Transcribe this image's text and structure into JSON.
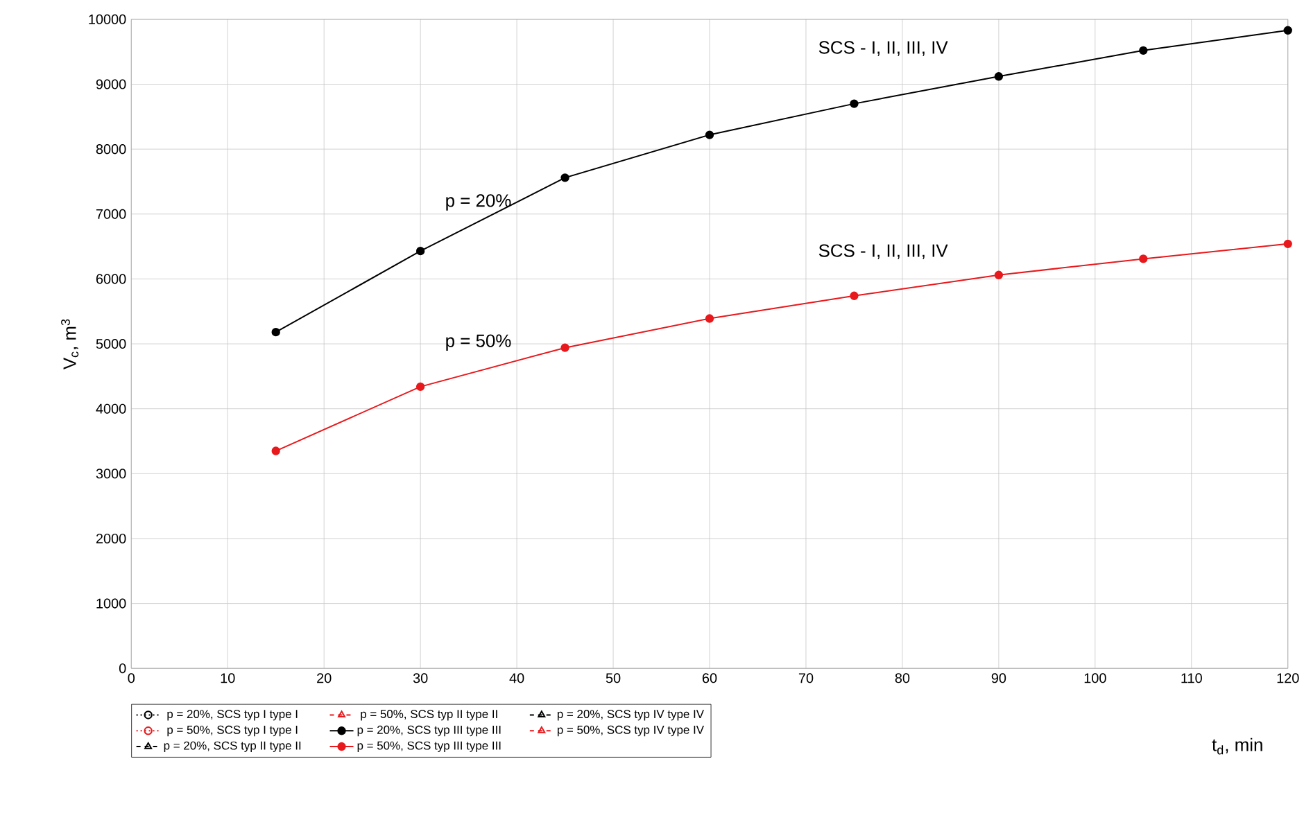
{
  "chart_data": {
    "type": "line",
    "xlabel": "t$_{d}$, min",
    "ylabel": "V$_{c}$, m$^{3}$",
    "x": [
      15,
      30,
      45,
      60,
      75,
      90,
      105,
      120
    ],
    "series": [
      {
        "name": "p = 20%, SCS typ I  type I",
        "color": "#000000",
        "marker": "circle",
        "line_style": "dotted",
        "values": [
          null,
          null,
          null,
          null,
          null,
          null,
          null,
          null
        ]
      },
      {
        "name": "p = 50%, SCS typ II  type II",
        "color": "#e8191c",
        "marker": "triangle",
        "line_style": "dashed",
        "values": [
          null,
          null,
          null,
          null,
          null,
          null,
          null,
          null
        ]
      },
      {
        "name": "p = 20%, SCS typ IV  type IV",
        "color": "#000000",
        "marker": "triangle",
        "line_style": "dashed",
        "values": [
          null,
          null,
          null,
          null,
          null,
          null,
          null,
          null
        ]
      },
      {
        "name": "p = 50%, SCS typ I  type I",
        "color": "#e8191c",
        "marker": "circle",
        "line_style": "dotted",
        "values": [
          null,
          null,
          null,
          null,
          null,
          null,
          null,
          null
        ]
      },
      {
        "name": "p = 20%, SCS typ III  type III",
        "color": "#000000",
        "marker": "circle",
        "line_style": "solid",
        "values": [
          5180,
          6430,
          7560,
          8220,
          8700,
          9120,
          9520,
          9830
        ]
      },
      {
        "name": "p = 50%, SCS typ IV  type IV",
        "color": "#e8191c",
        "marker": "triangle",
        "line_style": "dashed",
        "values": [
          null,
          null,
          null,
          null,
          null,
          null,
          null,
          null
        ]
      },
      {
        "name": "p = 20%, SCS typ II  type II",
        "color": "#000000",
        "marker": "triangle",
        "line_style": "dashed",
        "values": [
          null,
          null,
          null,
          null,
          null,
          null,
          null,
          null
        ]
      },
      {
        "name": "p = 50%, SCS typ III  type III",
        "color": "#e8191c",
        "marker": "circle",
        "line_style": "solid",
        "values": [
          3350,
          4340,
          4940,
          5390,
          5740,
          6060,
          6310,
          6540
        ]
      }
    ],
    "xlim": [
      0,
      120
    ],
    "ylim": [
      0,
      10000
    ],
    "xticks": [
      0,
      10,
      20,
      30,
      40,
      50,
      60,
      70,
      80,
      90,
      100,
      110,
      120
    ],
    "yticks": [
      0,
      1000,
      2000,
      3000,
      4000,
      5000,
      6000,
      7000,
      8000,
      9000,
      10000
    ],
    "grid": true,
    "legend": "bottom",
    "annotations": [
      "SCS - I, II, III, IV",
      "p = 20%",
      "SCS - I, II, III, IV",
      "p = 50%"
    ]
  }
}
